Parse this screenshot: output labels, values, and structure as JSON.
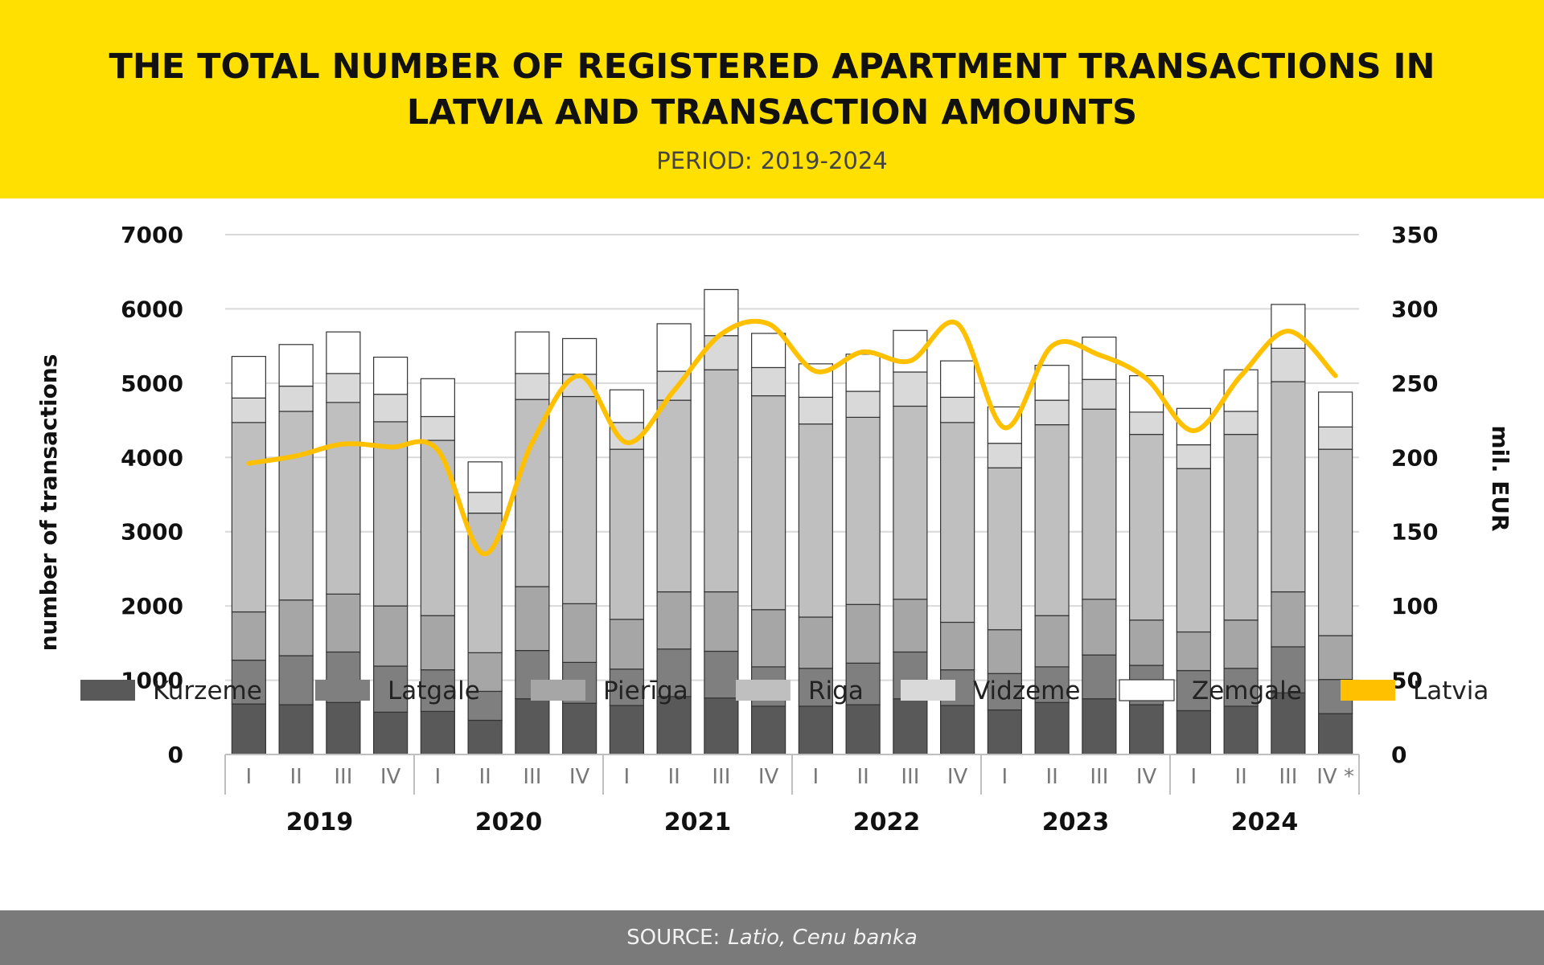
{
  "header": {
    "title_line1": "THE TOTAL NUMBER OF REGISTERED APARTMENT TRANSACTIONS IN",
    "title_line2": "LATVIA AND TRANSACTION AMOUNTS",
    "period_label": "PERIOD:",
    "period_value": "2019-2024"
  },
  "footer": {
    "source_label": "SOURCE:",
    "source_name": "Latio, Cenu banka"
  },
  "colors": {
    "header_bg": "#FFE000",
    "footer_bg": "#7A7A7A",
    "kurzeme": "#595959",
    "latgale": "#7F7F7F",
    "pieriga": "#A6A6A6",
    "riga": "#BFBFBF",
    "vidzeme": "#D9D9D9",
    "zemgale": "#FFFFFF",
    "latvia": "#FFC000"
  },
  "chart_data": {
    "type": "bar",
    "stacked": true,
    "ylabel": "number of transactions",
    "y2label": "mil. EUR",
    "ylim": [
      0,
      7000
    ],
    "y2lim": [
      0,
      350
    ],
    "yticks": [
      0,
      1000,
      2000,
      3000,
      4000,
      5000,
      6000,
      7000
    ],
    "y2ticks": [
      0,
      50,
      100,
      150,
      200,
      250,
      300,
      350
    ],
    "grid": true,
    "legend_position": "bottom",
    "years": [
      "2019",
      "2020",
      "2021",
      "2022",
      "2023",
      "2024"
    ],
    "categories": [
      "I",
      "II",
      "III",
      "IV",
      "I",
      "II",
      "III",
      "IV",
      "I",
      "II",
      "III",
      "IV",
      "I",
      "II",
      "III",
      "IV",
      "I",
      "II",
      "III",
      "IV",
      "I",
      "II",
      "III",
      "IV *"
    ],
    "series": [
      {
        "name": "Kurzeme",
        "values": [
          680,
          670,
          700,
          570,
          580,
          460,
          750,
          690,
          660,
          780,
          760,
          650,
          650,
          670,
          750,
          660,
          600,
          700,
          750,
          670,
          590,
          650,
          830,
          550
        ]
      },
      {
        "name": "Latgale",
        "values": [
          590,
          660,
          680,
          620,
          560,
          390,
          650,
          550,
          490,
          640,
          630,
          530,
          510,
          560,
          630,
          480,
          490,
          480,
          590,
          530,
          540,
          510,
          620,
          460
        ]
      },
      {
        "name": "Pierīga",
        "values": [
          650,
          750,
          780,
          810,
          730,
          520,
          860,
          790,
          670,
          770,
          800,
          770,
          690,
          790,
          710,
          640,
          590,
          690,
          750,
          610,
          520,
          650,
          740,
          590
        ]
      },
      {
        "name": "Riga",
        "values": [
          2550,
          2540,
          2580,
          2480,
          2360,
          1880,
          2520,
          2790,
          2290,
          2580,
          2990,
          2880,
          2600,
          2520,
          2600,
          2690,
          2180,
          2570,
          2560,
          2500,
          2200,
          2500,
          2830,
          2510
        ]
      },
      {
        "name": "Vidzeme",
        "values": [
          330,
          340,
          390,
          370,
          320,
          280,
          350,
          300,
          360,
          390,
          460,
          380,
          360,
          350,
          460,
          340,
          330,
          330,
          400,
          300,
          320,
          310,
          450,
          300
        ]
      },
      {
        "name": "Zemgale",
        "values": [
          560,
          560,
          560,
          500,
          510,
          410,
          560,
          480,
          440,
          640,
          620,
          460,
          450,
          500,
          560,
          490,
          490,
          470,
          570,
          490,
          490,
          560,
          590,
          470
        ]
      },
      {
        "name": "Latvia",
        "axis": "right",
        "type": "line",
        "values": [
          196,
          201,
          209,
          207,
          205,
          135,
          210,
          255,
          210,
          245,
          283,
          290,
          258,
          271,
          265,
          290,
          220,
          275,
          269,
          253,
          218,
          255,
          285,
          255
        ]
      }
    ]
  }
}
